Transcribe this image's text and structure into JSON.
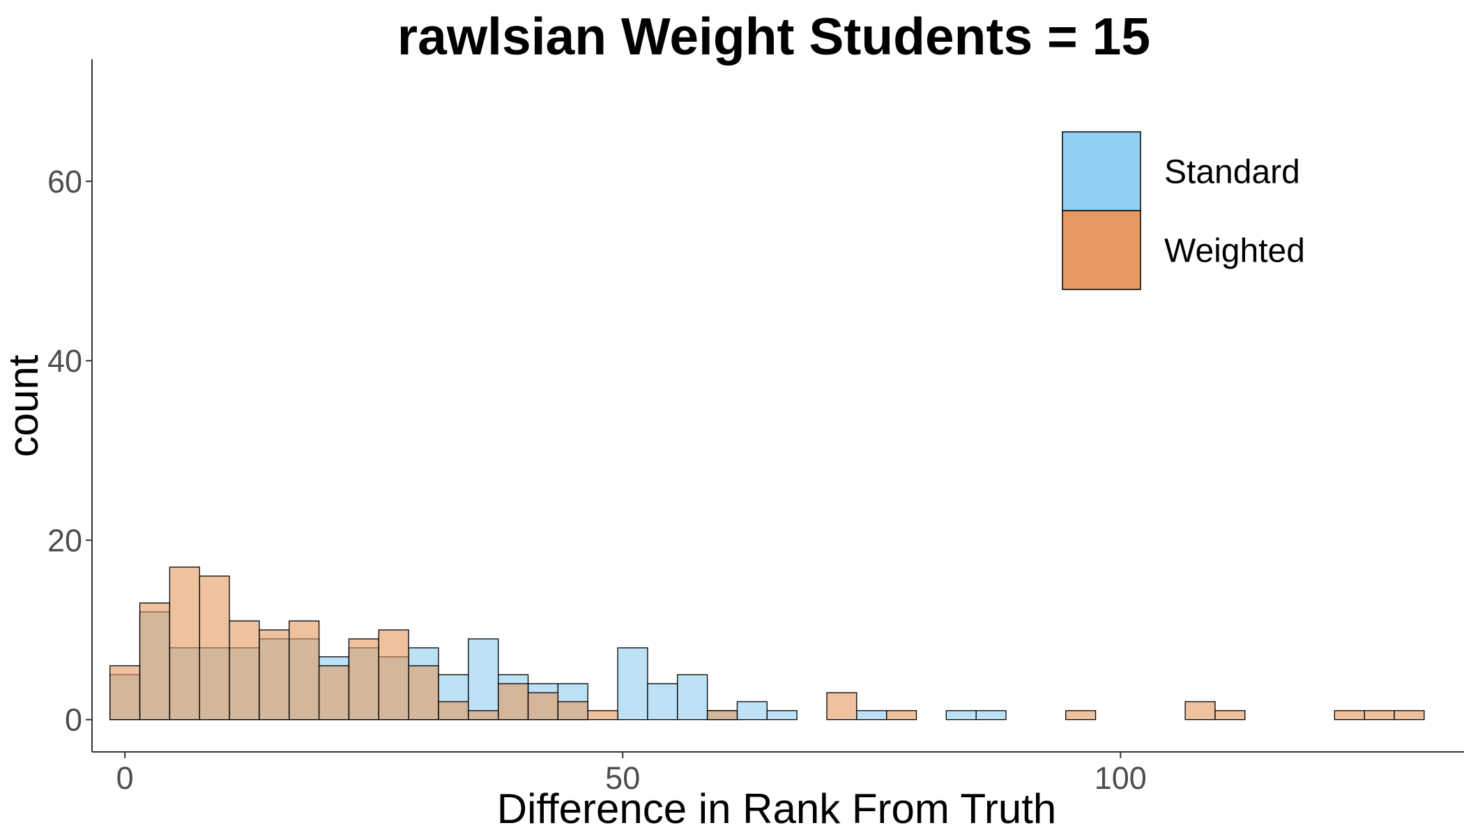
{
  "chart_data": {
    "type": "bar",
    "title": "rawlsian Weight Students = 15",
    "xlabel": "Difference in Rank From Truth",
    "ylabel": "count",
    "xlim": [
      -3.3,
      134.5
    ],
    "ylim": [
      -3.6,
      73.6
    ],
    "x_ticks": [
      0,
      50,
      100
    ],
    "y_ticks": [
      0,
      20,
      40,
      60
    ],
    "bin_width": 3,
    "bin_start": -1.5,
    "grid": false,
    "legend_position": "top-right",
    "series": [
      {
        "name": "Standard",
        "color": "#91cff0",
        "values": [
          5,
          12,
          8,
          8,
          8,
          9,
          9,
          7,
          8,
          7,
          8,
          5,
          9,
          5,
          4,
          4,
          0,
          8,
          4,
          5,
          1,
          2,
          1,
          0,
          0,
          1,
          0,
          0,
          1,
          1,
          0,
          0,
          0,
          0,
          0,
          0,
          0,
          0,
          0,
          0,
          0,
          0,
          0,
          0
        ]
      },
      {
        "name": "Weighted",
        "color": "#e3995f",
        "values": [
          6,
          13,
          17,
          16,
          11,
          10,
          11,
          6,
          9,
          10,
          6,
          2,
          1,
          4,
          3,
          2,
          1,
          0,
          0,
          0,
          1,
          0,
          0,
          0,
          3,
          0,
          1,
          0,
          0,
          0,
          0,
          0,
          1,
          0,
          0,
          0,
          2,
          1,
          0,
          0,
          0,
          1,
          1,
          1
        ]
      }
    ]
  }
}
